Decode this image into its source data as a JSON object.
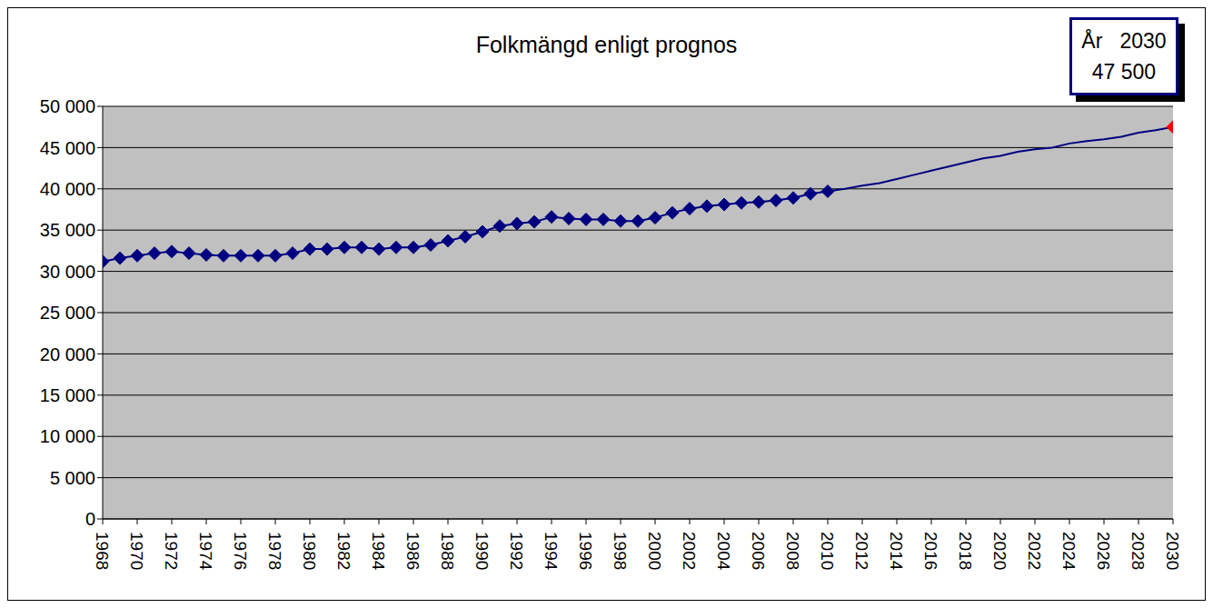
{
  "chart_data": {
    "type": "line",
    "title": "Folkmängd enligt prognos",
    "annotations": [
      "År   2030",
      "47 500"
    ],
    "x": [
      1968,
      1969,
      1970,
      1971,
      1972,
      1973,
      1974,
      1975,
      1976,
      1977,
      1978,
      1979,
      1980,
      1981,
      1982,
      1983,
      1984,
      1985,
      1986,
      1987,
      1988,
      1989,
      1990,
      1991,
      1992,
      1993,
      1994,
      1995,
      1996,
      1997,
      1998,
      1999,
      2000,
      2001,
      2002,
      2003,
      2004,
      2005,
      2006,
      2007,
      2008,
      2009,
      2010,
      2011,
      2012,
      2013,
      2014,
      2015,
      2016,
      2017,
      2018,
      2019,
      2020,
      2021,
      2022,
      2023,
      2024,
      2025,
      2026,
      2027,
      2028,
      2029,
      2030
    ],
    "series": [
      {
        "color": "#000080",
        "marker": "diamond",
        "line_style": "solid",
        "values": [
          31200,
          31600,
          31900,
          32200,
          32400,
          32200,
          32000,
          31900,
          31900,
          31900,
          31900,
          32200,
          32700,
          32700,
          32900,
          32900,
          32700,
          32900,
          32900,
          33200,
          33700,
          34200,
          34800,
          35500,
          35800,
          36000,
          36600,
          36400,
          36300,
          36300,
          36100,
          36100,
          36500,
          37100,
          37600,
          37900,
          38100,
          38300,
          38400,
          38600,
          38900,
          39400,
          39700,
          null,
          null,
          null,
          null,
          null,
          null,
          null,
          null,
          null,
          null,
          null,
          null,
          null,
          null,
          null,
          null,
          null,
          null,
          null,
          null
        ]
      },
      {
        "color": "#000080",
        "marker": "none",
        "line_style": "solid",
        "values": [
          null,
          null,
          null,
          null,
          null,
          null,
          null,
          null,
          null,
          null,
          null,
          null,
          null,
          null,
          null,
          null,
          null,
          null,
          null,
          null,
          null,
          null,
          null,
          null,
          null,
          null,
          null,
          null,
          null,
          null,
          null,
          null,
          null,
          null,
          null,
          null,
          null,
          null,
          null,
          null,
          null,
          null,
          39700,
          40000,
          40400,
          40700,
          41200,
          41700,
          42200,
          42700,
          43200,
          43700,
          44000,
          44500,
          44800,
          45000,
          45500,
          45800,
          46000,
          46300,
          46800,
          47100,
          47500
        ]
      },
      {
        "color": "#ff0000",
        "marker": "diamond",
        "line_style": "none",
        "values": [
          null,
          null,
          null,
          null,
          null,
          null,
          null,
          null,
          null,
          null,
          null,
          null,
          null,
          null,
          null,
          null,
          null,
          null,
          null,
          null,
          null,
          null,
          null,
          null,
          null,
          null,
          null,
          null,
          null,
          null,
          null,
          null,
          null,
          null,
          null,
          null,
          null,
          null,
          null,
          null,
          null,
          null,
          null,
          null,
          null,
          null,
          null,
          null,
          null,
          null,
          null,
          null,
          null,
          null,
          null,
          null,
          null,
          null,
          null,
          null,
          null,
          null,
          47500
        ]
      }
    ],
    "xlim": [
      1968,
      2030
    ],
    "xticks": [
      1968,
      1970,
      1972,
      1974,
      1976,
      1978,
      1980,
      1982,
      1984,
      1986,
      1988,
      1990,
      1992,
      1994,
      1996,
      1998,
      2000,
      2002,
      2004,
      2006,
      2008,
      2010,
      2012,
      2014,
      2016,
      2018,
      2020,
      2022,
      2024,
      2026,
      2028,
      2030
    ],
    "ylim": [
      0,
      50000
    ],
    "yticks": [
      0,
      {
        "value": 5000,
        "label": "5 000"
      },
      {
        "value": 10000,
        "label": "10 000"
      },
      {
        "value": 15000,
        "label": "15 000"
      },
      {
        "value": 20000,
        "label": "20 000"
      },
      {
        "value": 25000,
        "label": "25 000"
      },
      {
        "value": 30000,
        "label": "30 000"
      },
      {
        "value": 35000,
        "label": "35 000"
      },
      {
        "value": 40000,
        "label": "40 000"
      },
      {
        "value": 45000,
        "label": "45 000"
      },
      {
        "value": 50000,
        "label": "50 000"
      }
    ],
    "grid": true
  }
}
